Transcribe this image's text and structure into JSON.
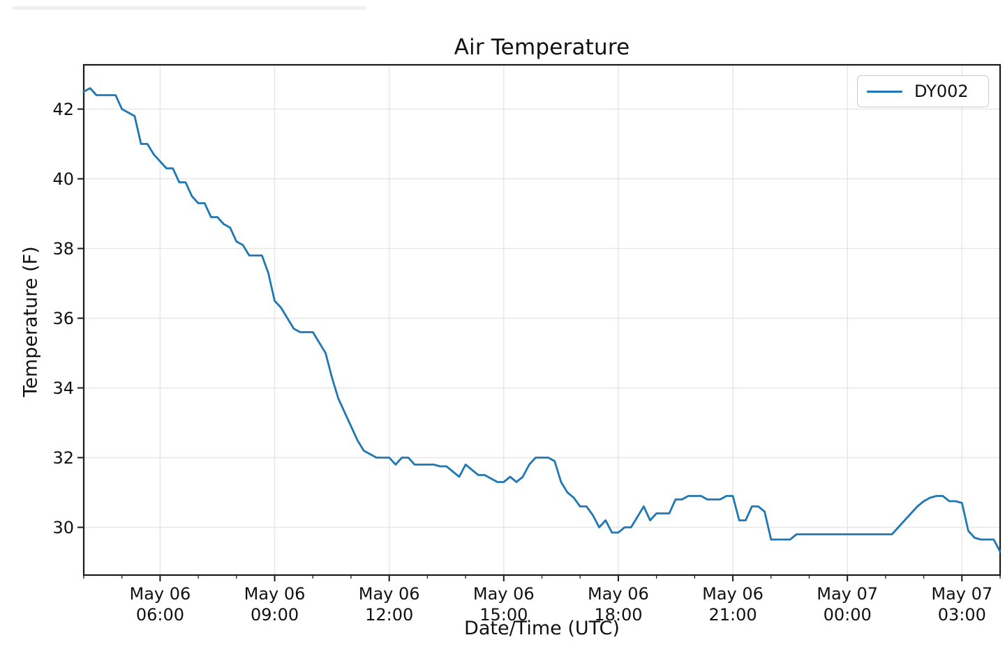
{
  "chart_data": {
    "type": "line",
    "title": "Air Temperature",
    "xlabel": "Date/Time (UTC)",
    "ylabel": "Temperature (F)",
    "grid": true,
    "legend_position": "upper right",
    "xlim_minutes": [
      240,
      1680
    ],
    "ylim": [
      28.63,
      43.27
    ],
    "y_ticks": [
      30,
      32,
      34,
      36,
      38,
      40,
      42
    ],
    "x_ticks": [
      {
        "minute": 360,
        "line1": "May 06",
        "line2": "06:00"
      },
      {
        "minute": 540,
        "line1": "May 06",
        "line2": "09:00"
      },
      {
        "minute": 720,
        "line1": "May 06",
        "line2": "12:00"
      },
      {
        "minute": 900,
        "line1": "May 06",
        "line2": "15:00"
      },
      {
        "minute": 1080,
        "line1": "May 06",
        "line2": "18:00"
      },
      {
        "minute": 1260,
        "line1": "May 06",
        "line2": "21:00"
      },
      {
        "minute": 1440,
        "line1": "May 07",
        "line2": "00:00"
      },
      {
        "minute": 1620,
        "line1": "May 07",
        "line2": "03:00"
      }
    ],
    "x_minor_tick_step_minutes": 60,
    "colors": {
      "line": "#1f77b4",
      "grid": "#e7e7e7",
      "axis": "#1a1a1a",
      "text": "#111111",
      "legend_border": "#cccccc"
    },
    "series": [
      {
        "name": "DY002",
        "x_minutes_utc_from_may06_0000": [
          240,
          250,
          260,
          270,
          280,
          290,
          300,
          310,
          320,
          330,
          340,
          350,
          360,
          370,
          380,
          390,
          400,
          410,
          420,
          430,
          440,
          450,
          460,
          470,
          480,
          490,
          500,
          510,
          520,
          530,
          540,
          550,
          560,
          570,
          580,
          590,
          600,
          610,
          620,
          630,
          640,
          650,
          660,
          670,
          680,
          690,
          700,
          710,
          720,
          730,
          740,
          750,
          760,
          770,
          780,
          790,
          800,
          810,
          820,
          830,
          840,
          850,
          860,
          870,
          880,
          890,
          900,
          910,
          920,
          930,
          940,
          950,
          960,
          970,
          980,
          990,
          1000,
          1010,
          1020,
          1030,
          1040,
          1050,
          1060,
          1070,
          1080,
          1090,
          1100,
          1110,
          1120,
          1130,
          1140,
          1150,
          1160,
          1170,
          1180,
          1190,
          1200,
          1210,
          1220,
          1230,
          1240,
          1250,
          1260,
          1270,
          1280,
          1290,
          1300,
          1310,
          1320,
          1330,
          1340,
          1350,
          1360,
          1370,
          1380,
          1390,
          1400,
          1410,
          1420,
          1430,
          1440,
          1450,
          1460,
          1470,
          1480,
          1490,
          1500,
          1510,
          1520,
          1530,
          1540,
          1550,
          1560,
          1570,
          1580,
          1590,
          1600,
          1610,
          1620,
          1630,
          1640,
          1650,
          1660,
          1670,
          1680
        ],
        "temps_f": [
          42.5,
          42.6,
          42.4,
          42.4,
          42.4,
          42.4,
          42.0,
          41.9,
          41.8,
          41.0,
          41.0,
          40.7,
          40.5,
          40.3,
          40.3,
          39.9,
          39.9,
          39.5,
          39.3,
          39.3,
          38.9,
          38.9,
          38.7,
          38.6,
          38.2,
          38.1,
          37.8,
          37.8,
          37.8,
          37.3,
          36.5,
          36.3,
          36.0,
          35.7,
          35.6,
          35.6,
          35.6,
          35.3,
          35.0,
          34.3,
          33.7,
          33.3,
          32.9,
          32.5,
          32.2,
          32.1,
          32.0,
          32.0,
          32.0,
          31.8,
          32.0,
          32.0,
          31.8,
          31.8,
          31.8,
          31.8,
          31.75,
          31.75,
          31.6,
          31.45,
          31.8,
          31.65,
          31.5,
          31.5,
          31.4,
          31.3,
          31.3,
          31.45,
          31.3,
          31.45,
          31.8,
          32.0,
          32.0,
          32.0,
          31.9,
          31.3,
          31.0,
          30.85,
          30.6,
          30.6,
          30.35,
          30.0,
          30.2,
          29.85,
          29.85,
          30.0,
          30.0,
          30.3,
          30.6,
          30.2,
          30.4,
          30.4,
          30.4,
          30.8,
          30.8,
          30.9,
          30.9,
          30.9,
          30.8,
          30.8,
          30.8,
          30.9,
          30.9,
          30.2,
          30.2,
          30.6,
          30.6,
          30.45,
          29.65,
          29.65,
          29.65,
          29.65,
          29.8,
          29.8,
          29.8,
          29.8,
          29.8,
          29.8,
          29.8,
          29.8,
          29.8,
          29.8,
          29.8,
          29.8,
          29.8,
          29.8,
          29.8,
          29.8,
          30.0,
          30.2,
          30.4,
          30.6,
          30.75,
          30.85,
          30.9,
          30.9,
          30.75,
          30.75,
          30.7,
          29.9,
          29.7,
          29.65,
          29.65,
          29.65,
          29.3
        ]
      }
    ]
  }
}
